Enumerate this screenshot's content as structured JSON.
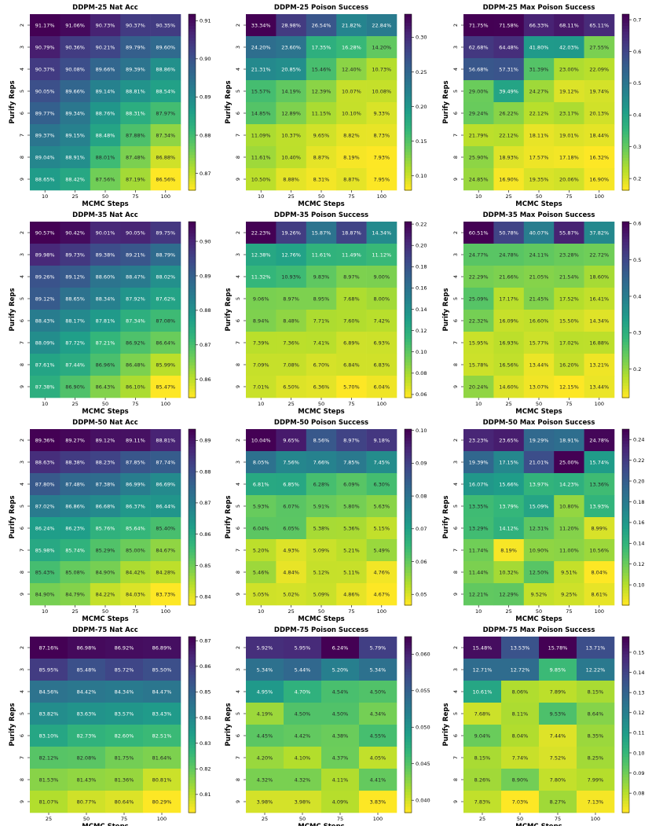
{
  "figure": {
    "shared_ylabel": "Purify Reps",
    "shared_xlabel": "MCMC Steps"
  },
  "chart_data": [
    {
      "type": "heatmap",
      "title": "DDPM-25 Nat Acc",
      "xlabel": "MCMC Steps",
      "ylabel": "Purify Reps",
      "x_categories": [
        "10",
        "25",
        "50",
        "75",
        "100"
      ],
      "y_categories": [
        "2",
        "3",
        "4",
        "5",
        "6",
        "7",
        "8",
        "9"
      ],
      "cells": [
        [
          "91.17%",
          "91.06%",
          "90.73%",
          "90.37%",
          "90.35%"
        ],
        [
          "90.79%",
          "90.36%",
          "90.21%",
          "89.79%",
          "89.60%"
        ],
        [
          "90.37%",
          "90.08%",
          "89.66%",
          "89.39%",
          "88.86%"
        ],
        [
          "90.05%",
          "89.66%",
          "89.14%",
          "88.81%",
          "88.54%"
        ],
        [
          "89.77%",
          "89.34%",
          "88.76%",
          "88.31%",
          "87.97%"
        ],
        [
          "89.37%",
          "89.15%",
          "88.48%",
          "87.88%",
          "87.34%"
        ],
        [
          "89.04%",
          "88.91%",
          "88.01%",
          "87.48%",
          "86.88%"
        ],
        [
          "88.65%",
          "88.42%",
          "87.56%",
          "87.19%",
          "86.56%"
        ]
      ],
      "colormap": "viridis_r",
      "colorbar_ticks": [
        "0.87",
        "0.88",
        "0.89",
        "0.90",
        "0.91"
      ]
    },
    {
      "type": "heatmap",
      "title": "DDPM-25 Poison Success",
      "xlabel": "MCMC Steps",
      "ylabel": "Purify Reps",
      "x_categories": [
        "10",
        "25",
        "50",
        "75",
        "100"
      ],
      "y_categories": [
        "2",
        "3",
        "4",
        "5",
        "6",
        "7",
        "8",
        "9"
      ],
      "cells": [
        [
          "33.34%",
          "28.98%",
          "26.54%",
          "21.82%",
          "22.84%"
        ],
        [
          "24.20%",
          "23.60%",
          "17.35%",
          "16.28%",
          "14.20%"
        ],
        [
          "21.31%",
          "20.85%",
          "15.46%",
          "12.40%",
          "10.73%"
        ],
        [
          "15.57%",
          "14.19%",
          "12.39%",
          "10.07%",
          "10.08%"
        ],
        [
          "14.85%",
          "12.89%",
          "11.15%",
          "10.10%",
          "9.33%"
        ],
        [
          "11.09%",
          "10.37%",
          "9.65%",
          "8.82%",
          "8.73%"
        ],
        [
          "11.61%",
          "10.40%",
          "8.87%",
          "8.19%",
          "7.93%"
        ],
        [
          "10.50%",
          "8.88%",
          "8.31%",
          "8.87%",
          "7.95%"
        ]
      ],
      "colormap": "viridis_r",
      "colorbar_ticks": [
        "0.10",
        "0.15",
        "0.20",
        "0.25",
        "0.30"
      ]
    },
    {
      "type": "heatmap",
      "title": "DDPM-25 Max Poison Success",
      "xlabel": "MCMC Steps",
      "ylabel": "Purify Reps",
      "x_categories": [
        "10",
        "25",
        "50",
        "75",
        "100"
      ],
      "y_categories": [
        "2",
        "3",
        "4",
        "5",
        "6",
        "7",
        "8",
        "9"
      ],
      "cells": [
        [
          "71.75%",
          "71.58%",
          "66.33%",
          "68.11%",
          "65.11%"
        ],
        [
          "62.68%",
          "64.48%",
          "41.80%",
          "42.03%",
          "27.55%"
        ],
        [
          "56.68%",
          "57.31%",
          "31.39%",
          "23.00%",
          "22.09%"
        ],
        [
          "29.00%",
          "39.49%",
          "24.27%",
          "19.12%",
          "19.74%"
        ],
        [
          "29.24%",
          "26.22%",
          "22.12%",
          "23.17%",
          "20.13%"
        ],
        [
          "21.79%",
          "22.12%",
          "18.11%",
          "19.01%",
          "18.44%"
        ],
        [
          "25.90%",
          "18.93%",
          "17.57%",
          "17.18%",
          "16.32%"
        ],
        [
          "24.85%",
          "16.90%",
          "19.35%",
          "20.06%",
          "16.90%"
        ]
      ],
      "colormap": "viridis_r",
      "colorbar_ticks": [
        "0.2",
        "0.3",
        "0.4",
        "0.5",
        "0.6",
        "0.7"
      ]
    },
    {
      "type": "heatmap",
      "title": "DDPM-35 Nat Acc",
      "xlabel": "MCMC Steps",
      "ylabel": "Purify Reps",
      "x_categories": [
        "10",
        "25",
        "50",
        "75",
        "100"
      ],
      "y_categories": [
        "2",
        "3",
        "4",
        "5",
        "6",
        "7",
        "8",
        "9"
      ],
      "cells": [
        [
          "90.57%",
          "90.42%",
          "90.01%",
          "90.05%",
          "89.75%"
        ],
        [
          "89.98%",
          "89.73%",
          "89.38%",
          "89.21%",
          "88.79%"
        ],
        [
          "89.26%",
          "89.12%",
          "88.60%",
          "88.47%",
          "88.02%"
        ],
        [
          "89.12%",
          "88.65%",
          "88.34%",
          "87.92%",
          "87.62%"
        ],
        [
          "88.43%",
          "88.17%",
          "87.81%",
          "87.34%",
          "87.08%"
        ],
        [
          "88.09%",
          "87.72%",
          "87.21%",
          "86.92%",
          "86.64%"
        ],
        [
          "87.61%",
          "87.44%",
          "86.96%",
          "86.48%",
          "85.99%"
        ],
        [
          "87.38%",
          "86.90%",
          "86.43%",
          "86.10%",
          "85.47%"
        ]
      ],
      "colormap": "viridis_r",
      "colorbar_ticks": [
        "0.86",
        "0.87",
        "0.88",
        "0.89",
        "0.90"
      ]
    },
    {
      "type": "heatmap",
      "title": "DDPM-35 Poison Success",
      "xlabel": "MCMC Steps",
      "ylabel": "Purify Reps",
      "x_categories": [
        "10",
        "25",
        "50",
        "75",
        "100"
      ],
      "y_categories": [
        "2",
        "3",
        "4",
        "5",
        "6",
        "7",
        "8",
        "9"
      ],
      "cells": [
        [
          "22.23%",
          "19.26%",
          "15.87%",
          "18.87%",
          "14.34%"
        ],
        [
          "12.38%",
          "12.76%",
          "11.61%",
          "11.49%",
          "11.12%"
        ],
        [
          "11.32%",
          "10.93%",
          "9.83%",
          "8.97%",
          "9.00%"
        ],
        [
          "9.06%",
          "8.97%",
          "8.95%",
          "7.68%",
          "8.00%"
        ],
        [
          "8.94%",
          "8.48%",
          "7.71%",
          "7.60%",
          "7.42%"
        ],
        [
          "7.39%",
          "7.36%",
          "7.41%",
          "6.89%",
          "6.93%"
        ],
        [
          "7.09%",
          "7.08%",
          "6.70%",
          "6.84%",
          "6.83%"
        ],
        [
          "7.01%",
          "6.50%",
          "6.36%",
          "5.70%",
          "6.04%"
        ]
      ],
      "colormap": "viridis_r",
      "colorbar_ticks": [
        "0.06",
        "0.08",
        "0.10",
        "0.12",
        "0.14",
        "0.16",
        "0.18",
        "0.20",
        "0.22"
      ]
    },
    {
      "type": "heatmap",
      "title": "DDPM-35 Max Poison Success",
      "xlabel": "MCMC Steps",
      "ylabel": "Purify Reps",
      "x_categories": [
        "10",
        "25",
        "50",
        "75",
        "100"
      ],
      "y_categories": [
        "2",
        "3",
        "4",
        "5",
        "6",
        "7",
        "8",
        "9"
      ],
      "cells": [
        [
          "60.51%",
          "50.78%",
          "40.07%",
          "55.87%",
          "37.82%"
        ],
        [
          "24.77%",
          "24.78%",
          "24.11%",
          "23.28%",
          "22.72%"
        ],
        [
          "22.29%",
          "21.66%",
          "21.05%",
          "21.54%",
          "18.60%"
        ],
        [
          "25.09%",
          "17.17%",
          "21.45%",
          "17.52%",
          "16.41%"
        ],
        [
          "22.32%",
          "16.09%",
          "16.60%",
          "15.50%",
          "14.34%"
        ],
        [
          "15.95%",
          "16.93%",
          "15.77%",
          "17.02%",
          "16.88%"
        ],
        [
          "15.78%",
          "16.56%",
          "13.44%",
          "16.20%",
          "13.21%"
        ],
        [
          "20.24%",
          "14.60%",
          "13.07%",
          "12.15%",
          "13.44%"
        ]
      ],
      "colormap": "viridis_r",
      "colorbar_ticks": [
        "0.2",
        "0.3",
        "0.4",
        "0.5",
        "0.6"
      ]
    },
    {
      "type": "heatmap",
      "title": "DDPM-50 Nat Acc",
      "xlabel": "MCMC Steps",
      "ylabel": "Purify Reps",
      "x_categories": [
        "10",
        "25",
        "50",
        "75",
        "100"
      ],
      "y_categories": [
        "2",
        "3",
        "4",
        "5",
        "6",
        "7",
        "8",
        "9"
      ],
      "cells": [
        [
          "89.36%",
          "89.27%",
          "89.12%",
          "89.11%",
          "88.81%"
        ],
        [
          "88.63%",
          "88.38%",
          "88.23%",
          "87.85%",
          "87.74%"
        ],
        [
          "87.80%",
          "87.48%",
          "87.38%",
          "86.99%",
          "86.69%"
        ],
        [
          "87.02%",
          "86.86%",
          "86.68%",
          "86.37%",
          "86.44%"
        ],
        [
          "86.24%",
          "86.23%",
          "85.76%",
          "85.64%",
          "85.40%"
        ],
        [
          "85.98%",
          "85.74%",
          "85.29%",
          "85.00%",
          "84.67%"
        ],
        [
          "85.43%",
          "85.08%",
          "84.90%",
          "84.42%",
          "84.28%"
        ],
        [
          "84.90%",
          "84.79%",
          "84.22%",
          "84.03%",
          "83.73%"
        ]
      ],
      "colormap": "viridis_r",
      "colorbar_ticks": [
        "0.84",
        "0.85",
        "0.86",
        "0.87",
        "0.88",
        "0.89"
      ]
    },
    {
      "type": "heatmap",
      "title": "DDPM-50 Poison Success",
      "xlabel": "MCMC Steps",
      "ylabel": "Purify Reps",
      "x_categories": [
        "10",
        "25",
        "50",
        "75",
        "100"
      ],
      "y_categories": [
        "2",
        "3",
        "4",
        "5",
        "6",
        "7",
        "8",
        "9"
      ],
      "cells": [
        [
          "10.04%",
          "9.65%",
          "8.56%",
          "8.97%",
          "9.18%"
        ],
        [
          "8.05%",
          "7.56%",
          "7.66%",
          "7.85%",
          "7.45%"
        ],
        [
          "6.81%",
          "6.85%",
          "6.28%",
          "6.09%",
          "6.30%"
        ],
        [
          "5.93%",
          "6.07%",
          "5.91%",
          "5.80%",
          "5.63%"
        ],
        [
          "6.04%",
          "6.05%",
          "5.38%",
          "5.36%",
          "5.15%"
        ],
        [
          "5.20%",
          "4.93%",
          "5.09%",
          "5.21%",
          "5.49%"
        ],
        [
          "5.46%",
          "4.84%",
          "5.12%",
          "5.11%",
          "4.76%"
        ],
        [
          "5.05%",
          "5.02%",
          "5.09%",
          "4.86%",
          "4.67%"
        ]
      ],
      "colormap": "viridis_r",
      "colorbar_ticks": [
        "0.05",
        "0.06",
        "0.07",
        "0.08",
        "0.09",
        "0.10"
      ]
    },
    {
      "type": "heatmap",
      "title": "DDPM-50 Max Poison Success",
      "xlabel": "MCMC Steps",
      "ylabel": "Purify Reps",
      "x_categories": [
        "10",
        "25",
        "50",
        "75",
        "100"
      ],
      "y_categories": [
        "2",
        "3",
        "4",
        "5",
        "6",
        "7",
        "8",
        "9"
      ],
      "cells": [
        [
          "23.23%",
          "23.65%",
          "19.29%",
          "18.91%",
          "24.78%"
        ],
        [
          "19.39%",
          "17.15%",
          "21.01%",
          "25.00%",
          "15.74%"
        ],
        [
          "16.07%",
          "15.66%",
          "13.97%",
          "14.23%",
          "13.36%"
        ],
        [
          "13.35%",
          "13.79%",
          "15.09%",
          "10.80%",
          "13.93%"
        ],
        [
          "13.29%",
          "14.12%",
          "12.31%",
          "11.20%",
          "8.99%"
        ],
        [
          "11.74%",
          "8.19%",
          "10.90%",
          "11.00%",
          "10.56%"
        ],
        [
          "11.44%",
          "10.32%",
          "12.50%",
          "9.51%",
          "8.04%"
        ],
        [
          "12.21%",
          "12.29%",
          "9.52%",
          "9.25%",
          "8.61%"
        ]
      ],
      "colormap": "viridis_r",
      "colorbar_ticks": [
        "0.10",
        "0.12",
        "0.14",
        "0.16",
        "0.18",
        "0.20",
        "0.22",
        "0.24"
      ]
    },
    {
      "type": "heatmap",
      "title": "DDPM-75 Nat Acc",
      "xlabel": "MCMC Steps",
      "ylabel": "Purify Reps",
      "x_categories": [
        "25",
        "50",
        "75",
        "100"
      ],
      "y_categories": [
        "2",
        "3",
        "4",
        "5",
        "6",
        "7",
        "8",
        "9"
      ],
      "cells": [
        [
          "87.16%",
          "86.98%",
          "86.92%",
          "86.89%"
        ],
        [
          "85.95%",
          "85.48%",
          "85.72%",
          "85.50%"
        ],
        [
          "84.56%",
          "84.42%",
          "84.34%",
          "84.47%"
        ],
        [
          "83.82%",
          "83.63%",
          "83.57%",
          "83.43%"
        ],
        [
          "83.10%",
          "82.73%",
          "82.60%",
          "82.51%"
        ],
        [
          "82.12%",
          "82.08%",
          "81.75%",
          "81.64%"
        ],
        [
          "81.53%",
          "81.43%",
          "81.36%",
          "80.81%"
        ],
        [
          "81.07%",
          "80.77%",
          "80.64%",
          "80.29%"
        ]
      ],
      "colormap": "viridis_r",
      "colorbar_ticks": [
        "0.81",
        "0.82",
        "0.83",
        "0.84",
        "0.85",
        "0.86",
        "0.87"
      ]
    },
    {
      "type": "heatmap",
      "title": "DDPM-75 Poison Success",
      "xlabel": "MCMC Steps",
      "ylabel": "Purify Reps",
      "x_categories": [
        "25",
        "50",
        "75",
        "100"
      ],
      "y_categories": [
        "2",
        "3",
        "4",
        "5",
        "6",
        "7",
        "8",
        "9"
      ],
      "cells": [
        [
          "5.92%",
          "5.95%",
          "6.24%",
          "5.79%"
        ],
        [
          "5.34%",
          "5.44%",
          "5.20%",
          "5.34%"
        ],
        [
          "4.95%",
          "4.70%",
          "4.54%",
          "4.50%"
        ],
        [
          "4.19%",
          "4.50%",
          "4.50%",
          "4.34%"
        ],
        [
          "4.45%",
          "4.42%",
          "4.38%",
          "4.55%"
        ],
        [
          "4.20%",
          "4.10%",
          "4.37%",
          "4.05%"
        ],
        [
          "4.32%",
          "4.32%",
          "4.11%",
          "4.41%"
        ],
        [
          "3.98%",
          "3.98%",
          "4.09%",
          "3.83%"
        ]
      ],
      "colormap": "viridis_r",
      "colorbar_ticks": [
        "0.040",
        "0.045",
        "0.050",
        "0.055",
        "0.060"
      ]
    },
    {
      "type": "heatmap",
      "title": "DDPM-75 Max Poison Success",
      "xlabel": "MCMC Steps",
      "ylabel": "Purify Reps",
      "x_categories": [
        "25",
        "50",
        "75",
        "100"
      ],
      "y_categories": [
        "2",
        "3",
        "4",
        "5",
        "6",
        "7",
        "8",
        "9"
      ],
      "cells": [
        [
          "15.48%",
          "13.53%",
          "15.78%",
          "13.71%"
        ],
        [
          "12.71%",
          "12.72%",
          "9.85%",
          "12.22%"
        ],
        [
          "10.61%",
          "8.06%",
          "7.89%",
          "8.15%"
        ],
        [
          "7.68%",
          "8.11%",
          "9.53%",
          "8.64%"
        ],
        [
          "9.04%",
          "8.04%",
          "7.44%",
          "8.35%"
        ],
        [
          "8.15%",
          "7.74%",
          "7.52%",
          "8.25%"
        ],
        [
          "8.26%",
          "8.90%",
          "7.80%",
          "7.99%"
        ],
        [
          "7.83%",
          "7.03%",
          "8.27%",
          "7.13%"
        ]
      ],
      "colormap": "viridis_r",
      "colorbar_ticks": [
        "0.08",
        "0.09",
        "0.10",
        "0.11",
        "0.12",
        "0.13",
        "0.14",
        "0.15"
      ]
    }
  ]
}
